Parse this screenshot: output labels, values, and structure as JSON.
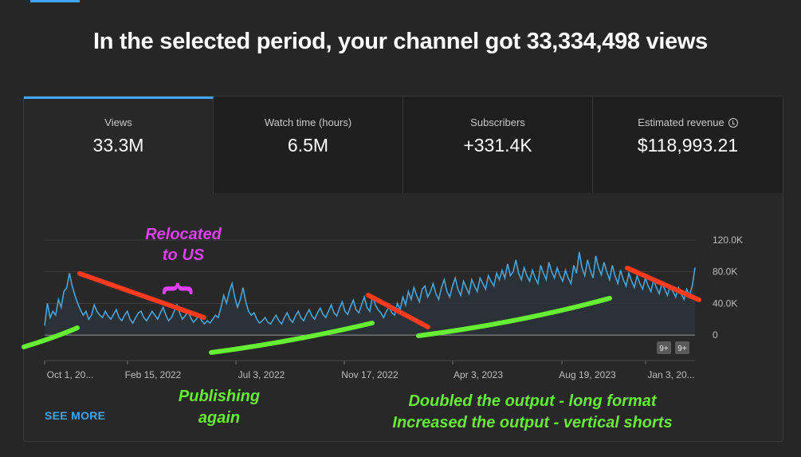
{
  "headline": "In the selected period, your channel got 33,334,498 views",
  "metrics": [
    {
      "label": "Views",
      "value": "33.3M"
    },
    {
      "label": "Watch time (hours)",
      "value": "6.5M"
    },
    {
      "label": "Subscribers",
      "value": "+331.4K"
    },
    {
      "label": "Estimated revenue",
      "value": "$118,993.21"
    }
  ],
  "see_more": "SEE MORE",
  "badges": [
    "9+",
    "9+"
  ],
  "annotations": {
    "relocated": "Relocated\nto US",
    "brace": "}",
    "publishing": "Publishing\nagain",
    "doubled": "Doubled the output - long format",
    "increased": "Increased the output - vertical shorts"
  },
  "colors": {
    "accent": "#3ea6ff",
    "line": "#4aa3d8",
    "trend_down": "#ff3b1f",
    "trend_up": "#66ee33",
    "annotation_pink": "#e040fb",
    "annotation_green": "#66ee33"
  },
  "chart_data": {
    "type": "area",
    "y_ticks": [
      "120.0K",
      "80.0K",
      "40.0K",
      "0"
    ],
    "ylim": [
      0,
      120000
    ],
    "x_tick_labels": [
      "Oct 1, 20...",
      "Feb 15, 2022",
      "Jul 3, 2022",
      "Nov 17, 2022",
      "Apr 3, 2023",
      "Aug 19, 2023",
      "Jan 3, 20..."
    ],
    "series": [
      {
        "values": [
          12000,
          40000,
          22000,
          30000,
          25000,
          45000,
          35000,
          55000,
          60000,
          78000,
          62000,
          50000,
          40000,
          32000,
          25000,
          30000,
          20000,
          25000,
          38000,
          30000,
          25000,
          22000,
          30000,
          24000,
          20000,
          26000,
          32000,
          22000,
          18000,
          25000,
          30000,
          20000,
          15000,
          22000,
          28000,
          30000,
          22000,
          18000,
          24000,
          30000,
          25000,
          20000,
          28000,
          35000,
          25000,
          18000,
          22000,
          30000,
          38000,
          28000,
          20000,
          24000,
          30000,
          22000,
          16000,
          20000,
          25000,
          18000,
          14000,
          18000,
          15000,
          20000,
          25000,
          22000,
          35000,
          50000,
          40000,
          55000,
          65000,
          48000,
          35000,
          45000,
          60000,
          42000,
          30000,
          25000,
          28000,
          20000,
          15000,
          18000,
          22000,
          16000,
          14000,
          20000,
          25000,
          18000,
          14000,
          22000,
          28000,
          20000,
          16000,
          24000,
          30000,
          22000,
          18000,
          26000,
          32000,
          24000,
          20000,
          28000,
          34000,
          26000,
          22000,
          30000,
          38000,
          28000,
          24000,
          34000,
          42000,
          30000,
          26000,
          36000,
          44000,
          32000,
          28000,
          38000,
          48000,
          35000,
          30000,
          50000,
          38000,
          32000,
          28000,
          22000,
          30000,
          35000,
          28000,
          25000,
          40000,
          32000,
          48000,
          38000,
          55000,
          45000,
          60000,
          50000,
          42000,
          58000,
          62000,
          48000,
          55000,
          65000,
          52000,
          45000,
          60000,
          70000,
          55000,
          48000,
          62000,
          72000,
          58000,
          50000,
          68000,
          60000,
          52000,
          70000,
          62000,
          55000,
          72000,
          65000,
          58000,
          75000,
          68000,
          62000,
          78000,
          70000,
          82000,
          72000,
          90000,
          75000,
          80000,
          95000,
          78000,
          70000,
          85000,
          75000,
          68000,
          82000,
          72000,
          65000,
          88000,
          78000,
          70000,
          92000,
          80000,
          72000,
          85000,
          75000,
          68000,
          82000,
          72000,
          65000,
          88000,
          78000,
          105000,
          85000,
          75000,
          95000,
          82000,
          72000,
          100000,
          85000,
          76000,
          92000,
          80000,
          70000,
          88000,
          75000,
          65000,
          82000,
          70000,
          62000,
          78000,
          68000,
          60000,
          75000,
          65000,
          58000,
          72000,
          62000,
          55000,
          70000,
          60000,
          52000,
          65000,
          58000,
          50000,
          62000,
          55000,
          48000,
          60000,
          52000,
          45000,
          58000,
          50000,
          62000,
          85000
        ]
      }
    ]
  }
}
